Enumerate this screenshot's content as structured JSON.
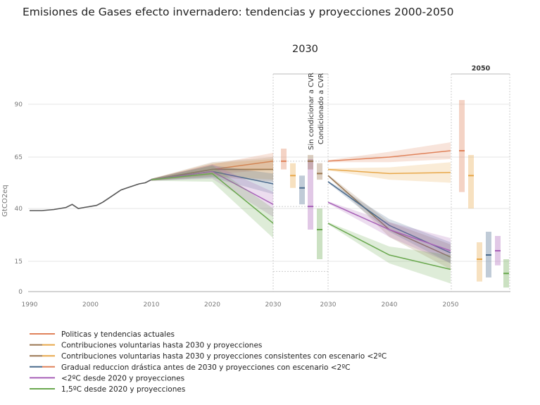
{
  "title": "Emisiones de Gases efecto invernadero: tendencias y proyecciones 2000-2050",
  "year_2030_label": "2030",
  "box_2050_label": "2050",
  "divider_labels": [
    "Sin condicionar a CVR",
    "Condicionado a CVR"
  ],
  "chart_data": {
    "type": "line",
    "ylabel": "GtCO2eq",
    "yticks": [
      0,
      15,
      40,
      65,
      90
    ],
    "xticks_left": [
      "1990",
      "2000",
      "2010",
      "2020",
      "2030"
    ],
    "xticks_right": [
      "2030",
      "2040",
      "2050"
    ],
    "historical": {
      "x": [
        1990,
        1992,
        1994,
        1995,
        1996,
        1997,
        1998,
        1999,
        2000,
        2001,
        2002,
        2003,
        2004,
        2005,
        2006,
        2007,
        2008,
        2009,
        2010
      ],
      "y": [
        39,
        39,
        39.5,
        40,
        40.5,
        42,
        40,
        40.5,
        41,
        41.5,
        43,
        45,
        47,
        49,
        50,
        51,
        52,
        52.5,
        54
      ]
    },
    "series": [
      {
        "name": "Politicas y tendencias actuales",
        "color": "#e0825a",
        "x": [
          2010,
          2020,
          2030
        ],
        "y": [
          54,
          59,
          63
        ],
        "x2": [
          2030,
          2040,
          2050
        ],
        "y2": [
          63,
          65,
          68
        ]
      },
      {
        "name": "Contribuciones voluntarias hasta 2030 y proyecciones",
        "color": "#e8a84a",
        "x": [
          2010,
          2020,
          2030
        ],
        "y": [
          54,
          59,
          59
        ],
        "x2": [
          2030,
          2040,
          2050
        ],
        "y2": [
          59,
          57,
          57.5
        ]
      },
      {
        "name": "Contribuciones voluntarias hasta 2030 y proyecciones consistentes con escenario <2ºC",
        "color": "#9a7650",
        "x": [
          2010,
          2020,
          2030
        ],
        "y": [
          54,
          59,
          59
        ],
        "x2": [
          2030,
          2040,
          2050
        ],
        "y2": [
          56,
          30,
          17
        ]
      },
      {
        "name": "Gradual reduccion drástica antes de 2030 y proyecciones con escenario <2ºC",
        "color": "#4a6a8c",
        "x": [
          2010,
          2020,
          2030
        ],
        "y": [
          54,
          58,
          52
        ],
        "x2": [
          2030,
          2040,
          2050
        ],
        "y2": [
          53,
          32,
          19
        ]
      },
      {
        "name": "<2ºC desde 2020 y proyecciones",
        "color": "#a862b8",
        "x": [
          2010,
          2020,
          2030
        ],
        "y": [
          54,
          58,
          42
        ],
        "x2": [
          2030,
          2040,
          2050
        ],
        "y2": [
          43,
          30,
          20
        ]
      },
      {
        "name": "1,5ºC desde 2020 y proyecciones",
        "color": "#6aa84f",
        "x": [
          2010,
          2020,
          2030
        ],
        "y": [
          54,
          57,
          33
        ],
        "x2": [
          2030,
          2040,
          2050
        ],
        "y2": [
          33,
          18,
          11
        ]
      }
    ],
    "legend": [
      "Politicas y tendencias actuales",
      "Contribuciones voluntarias hasta 2030 y proyecciones",
      "Contribuciones voluntarias hasta 2030 y proyecciones consistentes con escenario <2ºC",
      "Gradual reduccion drástica antes de 2030 y proyecciones con escenario <2ºC",
      "<2ºC desde 2020 y proyecciones",
      "1,5ºC desde 2020 y proyecciones"
    ]
  }
}
